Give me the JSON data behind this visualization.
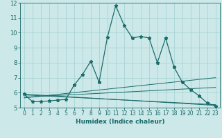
{
  "xlabel": "Humidex (Indice chaleur)",
  "bg_color": "#cce8e8",
  "grid_color": "#aad4d4",
  "line_color": "#1a6b6b",
  "xlim": [
    -0.5,
    23.5
  ],
  "ylim": [
    5,
    12
  ],
  "yticks": [
    5,
    6,
    7,
    8,
    9,
    10,
    11,
    12
  ],
  "xticks": [
    0,
    1,
    2,
    3,
    4,
    5,
    6,
    7,
    8,
    9,
    10,
    11,
    12,
    13,
    14,
    15,
    16,
    17,
    18,
    19,
    20,
    21,
    22,
    23
  ],
  "main_line_x": [
    0,
    1,
    2,
    3,
    4,
    5,
    6,
    7,
    8,
    9,
    10,
    11,
    12,
    13,
    14,
    15,
    16,
    17,
    18,
    19,
    20,
    21,
    22,
    23
  ],
  "main_line_y": [
    5.9,
    5.4,
    5.4,
    5.45,
    5.5,
    5.55,
    6.5,
    7.2,
    8.1,
    6.7,
    9.7,
    11.8,
    10.5,
    9.65,
    9.75,
    9.65,
    8.0,
    9.65,
    7.7,
    6.7,
    6.2,
    5.8,
    5.3,
    5.1
  ],
  "fan_lines": [
    {
      "x0": 0,
      "y0": 5.9,
      "x1": 23,
      "y1": 5.15
    },
    {
      "x0": 0,
      "y0": 5.85,
      "x1": 23,
      "y1": 5.2
    },
    {
      "x0": 0,
      "y0": 5.7,
      "x1": 23,
      "y1": 6.35
    },
    {
      "x0": 0,
      "y0": 5.65,
      "x1": 23,
      "y1": 7.0
    }
  ]
}
